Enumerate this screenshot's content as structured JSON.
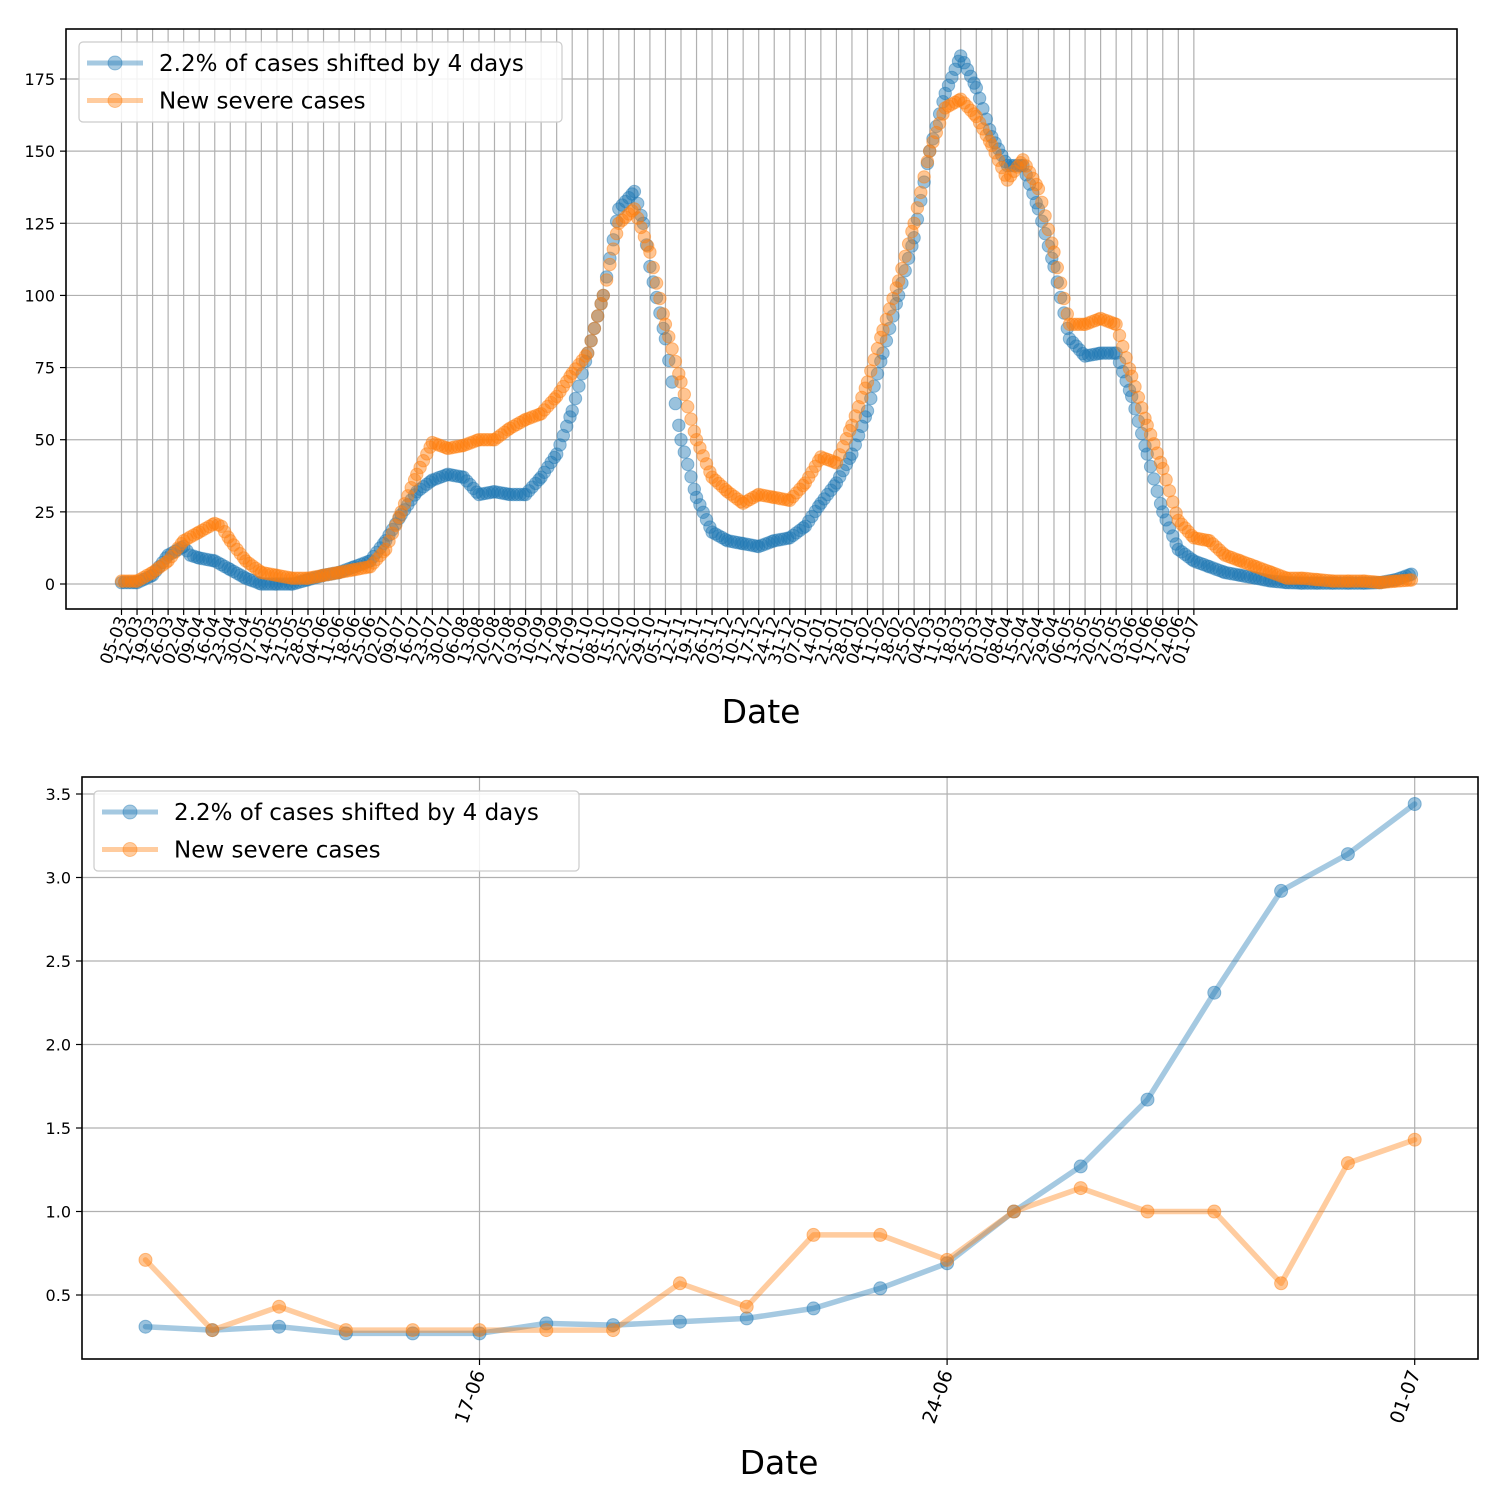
{
  "colors": {
    "series_a": "#1f77b4",
    "series_b": "#ff7f0e",
    "grid": "#b0b0b0"
  },
  "chart_data": [
    {
      "type": "line",
      "panel": "top",
      "title": "",
      "xlabel": "Date",
      "ylabel": "",
      "ylim": [
        -17,
        193
      ],
      "yticks": [
        0,
        25,
        50,
        75,
        100,
        125,
        150,
        175
      ],
      "x_tick_labels": [
        "05-03",
        "12-03",
        "19-03",
        "26-03",
        "02-04",
        "09-04",
        "16-04",
        "23-04",
        "30-04",
        "07-05",
        "14-05",
        "21-05",
        "28-05",
        "04-06",
        "11-06",
        "18-06",
        "25-06",
        "02-07",
        "09-07",
        "16-07",
        "23-07",
        "30-07",
        "06-08",
        "13-08",
        "20-08",
        "27-08",
        "03-09",
        "10-09",
        "17-09",
        "24-09",
        "01-10",
        "08-10",
        "15-10",
        "22-10",
        "29-10",
        "05-11",
        "12-11",
        "19-11",
        "26-11",
        "03-12",
        "10-12",
        "17-12",
        "24-12",
        "31-12",
        "07-01",
        "14-01",
        "21-01",
        "28-01",
        "04-02",
        "11-02",
        "18-02",
        "25-02",
        "04-03",
        "11-03",
        "18-03",
        "25-03",
        "01-04",
        "08-04",
        "15-04",
        "22-04",
        "29-04",
        "06-05",
        "13-05",
        "20-05",
        "27-05",
        "03-06",
        "10-06",
        "17-06",
        "24-06",
        "01-07"
      ],
      "grid": true,
      "legend_position": "upper-left",
      "series": [
        {
          "name": "2.2% of cases shifted by 4 days",
          "color": "#1f77b4",
          "points": [
            [
              0,
              0.5
            ],
            [
              7,
              0.5
            ],
            [
              14,
              3
            ],
            [
              21,
              10
            ],
            [
              28,
              13
            ],
            [
              31,
              10
            ],
            [
              35,
              9
            ],
            [
              42,
              8
            ],
            [
              49,
              5
            ],
            [
              56,
              2
            ],
            [
              63,
              0
            ],
            [
              70,
              0
            ],
            [
              77,
              0
            ],
            [
              84,
              1.5
            ],
            [
              91,
              3
            ],
            [
              98,
              4
            ],
            [
              105,
              6
            ],
            [
              112,
              8
            ],
            [
              119,
              15
            ],
            [
              126,
              24
            ],
            [
              133,
              32
            ],
            [
              140,
              36
            ],
            [
              147,
              38
            ],
            [
              154,
              37
            ],
            [
              161,
              31
            ],
            [
              168,
              32
            ],
            [
              175,
              31
            ],
            [
              182,
              31
            ],
            [
              189,
              37
            ],
            [
              196,
              45
            ],
            [
              203,
              60
            ],
            [
              210,
              80
            ],
            [
              217,
              100
            ],
            [
              224,
              130
            ],
            [
              231,
              136
            ],
            [
              235,
              125
            ],
            [
              238,
              110
            ],
            [
              245,
              85
            ],
            [
              252,
              50
            ],
            [
              259,
              30
            ],
            [
              266,
              18
            ],
            [
              273,
              15
            ],
            [
              280,
              14
            ],
            [
              287,
              13
            ],
            [
              294,
              15
            ],
            [
              301,
              16
            ],
            [
              308,
              20
            ],
            [
              315,
              28
            ],
            [
              322,
              35
            ],
            [
              329,
              45
            ],
            [
              336,
              60
            ],
            [
              343,
              80
            ],
            [
              350,
              100
            ],
            [
              357,
              120
            ],
            [
              364,
              150
            ],
            [
              371,
              170
            ],
            [
              378,
              183
            ],
            [
              385,
              172
            ],
            [
              392,
              155
            ],
            [
              399,
              145
            ],
            [
              406,
              145
            ],
            [
              413,
              130
            ],
            [
              420,
              110
            ],
            [
              427,
              85
            ],
            [
              434,
              79
            ],
            [
              441,
              80
            ],
            [
              448,
              80
            ],
            [
              455,
              65
            ],
            [
              462,
              45
            ],
            [
              469,
              25
            ],
            [
              476,
              12
            ],
            [
              483,
              8
            ],
            [
              490,
              6
            ],
            [
              497,
              4
            ],
            [
              504,
              3
            ],
            [
              511,
              2
            ],
            [
              518,
              1
            ],
            [
              525,
              0.5
            ],
            [
              532,
              0.3
            ],
            [
              539,
              0.3
            ],
            [
              546,
              0.3
            ],
            [
              553,
              0.3
            ],
            [
              560,
              0.3
            ],
            [
              567,
              0.5
            ],
            [
              574,
              1.5
            ],
            [
              581,
              3.4
            ]
          ]
        },
        {
          "name": "New severe cases",
          "color": "#ff7f0e",
          "points": [
            [
              0,
              1
            ],
            [
              7,
              1
            ],
            [
              14,
              4
            ],
            [
              21,
              8
            ],
            [
              28,
              15
            ],
            [
              35,
              18
            ],
            [
              42,
              21
            ],
            [
              45,
              20
            ],
            [
              49,
              15
            ],
            [
              56,
              8
            ],
            [
              63,
              4
            ],
            [
              70,
              3
            ],
            [
              77,
              2
            ],
            [
              84,
              2
            ],
            [
              91,
              3
            ],
            [
              98,
              4
            ],
            [
              105,
              5
            ],
            [
              112,
              6
            ],
            [
              119,
              12
            ],
            [
              126,
              25
            ],
            [
              133,
              38
            ],
            [
              140,
              49
            ],
            [
              147,
              47
            ],
            [
              154,
              48
            ],
            [
              161,
              50
            ],
            [
              168,
              50
            ],
            [
              175,
              54
            ],
            [
              182,
              57
            ],
            [
              189,
              59
            ],
            [
              196,
              65
            ],
            [
              203,
              73
            ],
            [
              210,
              80
            ],
            [
              217,
              100
            ],
            [
              224,
              125
            ],
            [
              231,
              130
            ],
            [
              238,
              115
            ],
            [
              245,
              90
            ],
            [
              252,
              70
            ],
            [
              259,
              50
            ],
            [
              266,
              37
            ],
            [
              273,
              32
            ],
            [
              280,
              28
            ],
            [
              287,
              31
            ],
            [
              294,
              30
            ],
            [
              301,
              29
            ],
            [
              308,
              35
            ],
            [
              315,
              44
            ],
            [
              322,
              42
            ],
            [
              329,
              55
            ],
            [
              336,
              70
            ],
            [
              343,
              88
            ],
            [
              350,
              105
            ],
            [
              357,
              125
            ],
            [
              364,
              150
            ],
            [
              371,
              165
            ],
            [
              378,
              168
            ],
            [
              385,
              162
            ],
            [
              392,
              152
            ],
            [
              399,
              140
            ],
            [
              406,
              147
            ],
            [
              413,
              137
            ],
            [
              420,
              115
            ],
            [
              427,
              90
            ],
            [
              434,
              90
            ],
            [
              441,
              92
            ],
            [
              448,
              90
            ],
            [
              455,
              72
            ],
            [
              462,
              55
            ],
            [
              469,
              40
            ],
            [
              476,
              22
            ],
            [
              483,
              16
            ],
            [
              490,
              15
            ],
            [
              497,
              10
            ],
            [
              504,
              8
            ],
            [
              511,
              6
            ],
            [
              518,
              4
            ],
            [
              525,
              2
            ],
            [
              532,
              2
            ],
            [
              539,
              1.5
            ],
            [
              546,
              1
            ],
            [
              553,
              1
            ],
            [
              560,
              1
            ],
            [
              567,
              0.5
            ],
            [
              574,
              1
            ],
            [
              581,
              1.4
            ]
          ]
        }
      ]
    },
    {
      "type": "line",
      "panel": "bottom",
      "title": "",
      "xlabel": "Date",
      "ylabel": "",
      "ylim": [
        0.12,
        3.6
      ],
      "yticks": [
        0.5,
        1.0,
        1.5,
        2.0,
        2.5,
        3.0,
        3.5
      ],
      "ytick_labels": [
        "0.5",
        "1.0",
        "1.5",
        "2.0",
        "2.5",
        "3.0",
        "3.5"
      ],
      "x_ticks": [
        {
          "x": 6,
          "label": "17-06"
        },
        {
          "x": 13,
          "label": "24-06"
        },
        {
          "x": 20,
          "label": "01-07"
        }
      ],
      "xlim": [
        -0.95,
        20.95
      ],
      "grid": true,
      "legend_position": "upper-left",
      "series": [
        {
          "name": "2.2% of cases shifted by 4 days",
          "color": "#1f77b4",
          "x": [
            1,
            2,
            3,
            4,
            5,
            6,
            7,
            8,
            9,
            10,
            11,
            12,
            13,
            14,
            15,
            16,
            17,
            18,
            19,
            20
          ],
          "values": [
            0.31,
            0.29,
            0.31,
            0.27,
            0.27,
            0.27,
            0.33,
            0.32,
            0.34,
            0.36,
            0.42,
            0.54,
            0.69,
            1.0,
            1.27,
            1.67,
            2.31,
            2.92,
            3.14,
            3.44
          ]
        },
        {
          "name": "New severe cases",
          "color": "#ff7f0e",
          "x": [
            1,
            2,
            3,
            4,
            5,
            6,
            7,
            8,
            9,
            10,
            11,
            12,
            13,
            14,
            15,
            16,
            17,
            18,
            19,
            20
          ],
          "values": [
            0.71,
            0.29,
            0.43,
            0.29,
            0.29,
            0.29,
            0.29,
            0.29,
            0.57,
            0.43,
            0.86,
            0.86,
            0.71,
            1.0,
            1.14,
            1.0,
            1.0,
            0.57,
            1.29,
            1.43
          ]
        }
      ]
    }
  ]
}
